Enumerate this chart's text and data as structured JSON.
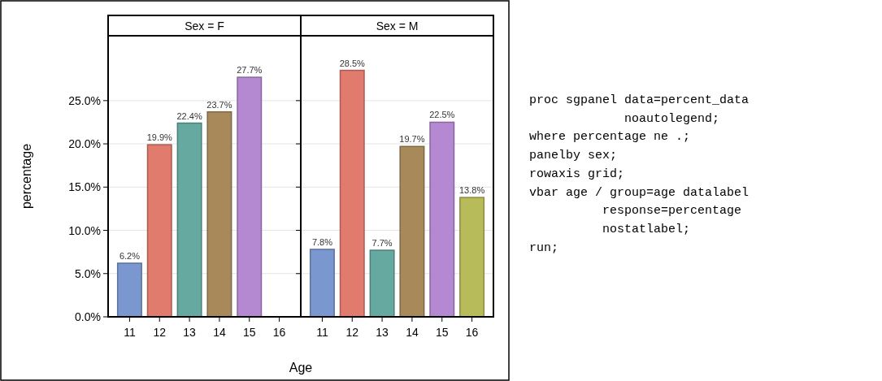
{
  "chart_data": [
    {
      "type": "bar",
      "title": "Sex = F",
      "xlabel": "Age",
      "ylabel": "percentage",
      "categories": [
        "11",
        "12",
        "13",
        "14",
        "15",
        "16"
      ],
      "values": [
        6.2,
        19.9,
        22.4,
        23.7,
        27.7,
        null
      ],
      "colors": [
        "#7b97d0",
        "#e07b6e",
        "#66a9a1",
        "#a88a5a",
        "#b589d1",
        null
      ],
      "value_labels": [
        "6.2%",
        "19.9%",
        "22.4%",
        "23.7%",
        "27.7%",
        null
      ],
      "ylim": [
        0,
        32.5
      ],
      "yticks": [
        {
          "value": 0,
          "label": "0.0%"
        },
        {
          "value": 5,
          "label": "5.0%"
        },
        {
          "value": 10,
          "label": "10.0%"
        },
        {
          "value": 15,
          "label": "15.0%"
        },
        {
          "value": 20,
          "label": "20.0%"
        },
        {
          "value": 25,
          "label": "25.0%"
        }
      ],
      "grid": "y"
    },
    {
      "type": "bar",
      "title": "Sex = M",
      "categories": [
        "11",
        "12",
        "13",
        "14",
        "15",
        "16"
      ],
      "values": [
        7.8,
        28.5,
        7.7,
        19.7,
        22.5,
        13.8
      ],
      "colors": [
        "#7b97d0",
        "#e07b6e",
        "#66a9a1",
        "#a88a5a",
        "#b589d1",
        "#b8bb5a"
      ],
      "value_labels": [
        "7.8%",
        "28.5%",
        "7.7%",
        "19.7%",
        "22.5%",
        "13.8%"
      ],
      "ylim": [
        0,
        32.5
      ],
      "yticks": [
        {
          "value": 0,
          "label": null
        },
        {
          "value": 5,
          "label": null
        },
        {
          "value": 10,
          "label": null
        },
        {
          "value": 15,
          "label": null
        },
        {
          "value": 20,
          "label": null
        },
        {
          "value": 25,
          "label": null
        }
      ],
      "grid": "y",
      "tick_labels": "x"
    },
    {
      "type": "other",
      "annotations": [
        "proc sgpanel data=percent_data",
        "             noautolegend;",
        "where percentage ne .;",
        "panelby sex;",
        "rowaxis grid;",
        "vbar age / group=age datalabel",
        "          response=percentage",
        "          nostatlabel;",
        "run;"
      ]
    }
  ]
}
